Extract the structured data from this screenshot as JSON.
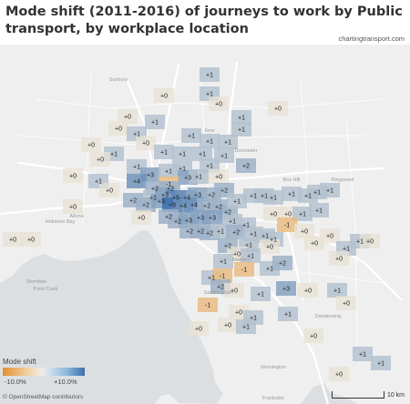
{
  "title": "Mode shift (2011-2016) of journeys to work by Public transport, by workplace location",
  "source": "chartingtransport.com",
  "legend": {
    "title": "Mode shift",
    "min_label": "-10.0%",
    "max_label": "+10.0%",
    "min_value": -10.0,
    "max_value": 10.0,
    "colors": {
      "negative": "#e08f2c",
      "neutral": "#f3ede2",
      "positive": "#3c6fab"
    }
  },
  "attribution": "© OpenStreetMap contributors",
  "scale_label": "10 km",
  "place_labels": [
    "Werribee",
    "Kew",
    "Malvern",
    "Frankston",
    "Altona",
    "Sunbury",
    "Box Hill",
    "Ringwood",
    "Dandenong",
    "Doncaster",
    "Hobsons Bay",
    "Point Cook",
    "Mornington",
    "Sandringham"
  ],
  "map_labels": [
    {
      "text": "+1",
      "value": 1
    },
    {
      "text": "+0",
      "value": 0
    },
    {
      "text": "+1",
      "value": 1
    },
    {
      "text": "+0",
      "value": 0
    },
    {
      "text": "+0",
      "value": 0
    },
    {
      "text": "+1",
      "value": 1
    },
    {
      "text": "+1",
      "value": 1
    },
    {
      "text": "+0",
      "value": 0
    },
    {
      "text": "+0",
      "value": 0
    },
    {
      "text": "+1",
      "value": 1
    },
    {
      "text": "+1",
      "value": 1
    },
    {
      "text": "+1",
      "value": 1
    },
    {
      "text": "+1",
      "value": 1
    },
    {
      "text": "+1",
      "value": 1
    },
    {
      "text": "+0",
      "value": 0
    },
    {
      "text": "+0",
      "value": 0
    },
    {
      "text": "+1",
      "value": 1
    },
    {
      "text": "+1",
      "value": 1
    },
    {
      "text": "+1",
      "value": 1
    },
    {
      "text": "+1",
      "value": 1
    },
    {
      "text": "+1",
      "value": 1
    },
    {
      "text": "+0",
      "value": 0
    },
    {
      "text": "+1",
      "value": 1
    },
    {
      "text": "+1",
      "value": 1
    },
    {
      "text": "+2",
      "value": 2
    },
    {
      "text": "+3",
      "value": 3
    },
    {
      "text": "+0",
      "value": 0
    },
    {
      "text": "+1",
      "value": 1
    },
    {
      "text": "+1",
      "value": 1
    },
    {
      "text": "+3",
      "value": 3
    },
    {
      "text": "+1",
      "value": 1
    },
    {
      "text": "+0",
      "value": 0
    },
    {
      "text": "+1",
      "value": 1
    },
    {
      "text": "+4",
      "value": 4
    },
    {
      "text": "-1",
      "value": -1
    },
    {
      "text": "+2",
      "value": 2
    },
    {
      "text": "+2",
      "value": 2
    },
    {
      "text": "+0",
      "value": 0
    },
    {
      "text": "+1",
      "value": 1
    },
    {
      "text": "+3",
      "value": 3
    },
    {
      "text": "+5",
      "value": 5
    },
    {
      "text": "+4",
      "value": 4
    },
    {
      "text": "+3",
      "value": 3
    },
    {
      "text": "+2",
      "value": 2
    },
    {
      "text": "+2",
      "value": 2
    },
    {
      "text": "+1",
      "value": 1
    },
    {
      "text": "+1",
      "value": 1
    },
    {
      "text": "+1",
      "value": 1
    },
    {
      "text": "+1",
      "value": 1
    },
    {
      "text": "+1",
      "value": 1
    },
    {
      "text": "+1",
      "value": 1
    },
    {
      "text": "+1",
      "value": 1
    },
    {
      "text": "+0",
      "value": 0
    },
    {
      "text": "+2",
      "value": 2
    },
    {
      "text": "+2",
      "value": 2
    },
    {
      "text": "+3",
      "value": 3
    },
    {
      "text": "+8",
      "value": 8
    },
    {
      "text": "+4",
      "value": 4
    },
    {
      "text": "+4",
      "value": 4
    },
    {
      "text": "+2",
      "value": 2
    },
    {
      "text": "+2",
      "value": 2
    },
    {
      "text": "+2",
      "value": 2
    },
    {
      "text": "+0",
      "value": 0
    },
    {
      "text": "+0",
      "value": 0
    },
    {
      "text": "+1",
      "value": 1
    },
    {
      "text": "+1",
      "value": 1
    },
    {
      "text": "+1",
      "value": 1
    },
    {
      "text": "+2",
      "value": 2
    },
    {
      "text": "+0",
      "value": 0
    },
    {
      "text": "+2",
      "value": 2
    },
    {
      "text": "+3",
      "value": 3
    },
    {
      "text": "+3",
      "value": 3
    },
    {
      "text": "+3",
      "value": 3
    },
    {
      "text": "+1",
      "value": 1
    },
    {
      "text": "+1",
      "value": 1
    },
    {
      "text": "-1",
      "value": -1
    },
    {
      "text": "+0",
      "value": 0
    },
    {
      "text": "+0",
      "value": 0
    },
    {
      "text": "+2",
      "value": 2
    },
    {
      "text": "+2",
      "value": 2
    },
    {
      "text": "+2",
      "value": 2
    },
    {
      "text": "+1",
      "value": 1
    },
    {
      "text": "+2",
      "value": 2
    },
    {
      "text": "+1",
      "value": 1
    },
    {
      "text": "+1",
      "value": 1
    },
    {
      "text": "+1",
      "value": 1
    },
    {
      "text": "+0",
      "value": 0
    },
    {
      "text": "+0",
      "value": 0
    },
    {
      "text": "+2",
      "value": 2
    },
    {
      "text": "+1",
      "value": 1
    },
    {
      "text": "+0",
      "value": 0
    },
    {
      "text": "+0",
      "value": 0
    },
    {
      "text": "+1",
      "value": 1
    },
    {
      "text": "+1",
      "value": 1
    },
    {
      "text": "+0",
      "value": 0
    },
    {
      "text": "+1",
      "value": 1
    },
    {
      "text": "+1",
      "value": 1
    },
    {
      "text": "-1",
      "value": -1
    },
    {
      "text": "+1",
      "value": 1
    },
    {
      "text": "+2",
      "value": 2
    },
    {
      "text": "+0",
      "value": 0
    },
    {
      "text": "+0",
      "value": 0
    },
    {
      "text": "+1",
      "value": 1
    },
    {
      "text": "-1",
      "value": -1
    },
    {
      "text": "+2",
      "value": 2
    },
    {
      "text": "+0",
      "value": 0
    },
    {
      "text": "+1",
      "value": 1
    },
    {
      "text": "+3",
      "value": 3
    },
    {
      "text": "+0",
      "value": 0
    },
    {
      "text": "+1",
      "value": 1
    },
    {
      "text": "+0",
      "value": 0
    },
    {
      "text": "-1",
      "value": -1
    },
    {
      "text": "+0",
      "value": 0
    },
    {
      "text": "+1",
      "value": 1
    },
    {
      "text": "+1",
      "value": 1
    },
    {
      "text": "+0",
      "value": 0
    },
    {
      "text": "+1",
      "value": 1
    },
    {
      "text": "+0",
      "value": 0
    },
    {
      "text": "+0",
      "value": 0
    },
    {
      "text": "+1",
      "value": 1
    },
    {
      "text": "+1",
      "value": 1
    },
    {
      "text": "+0",
      "value": 0
    },
    {
      "text": "+1",
      "value": 1
    },
    {
      "text": "+0",
      "value": 0
    },
    {
      "text": "+1",
      "value": 1
    },
    {
      "text": "+0",
      "value": 0
    }
  ]
}
